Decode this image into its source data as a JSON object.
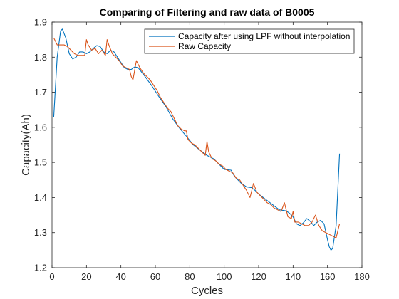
{
  "chart_data": {
    "type": "line",
    "title": "Comparing of Filtering and raw data of B0005",
    "xlabel": "Cycles",
    "ylabel": "Capacity(Ah)",
    "xlim": [
      0,
      180
    ],
    "ylim": [
      1.2,
      1.9
    ],
    "xticks": [
      0,
      20,
      40,
      60,
      80,
      100,
      120,
      140,
      160,
      180
    ],
    "yticks": [
      1.2,
      1.3,
      1.4,
      1.5,
      1.6,
      1.7,
      1.8,
      1.9
    ],
    "grid": false,
    "legend_position": "top-right",
    "series": [
      {
        "name": "Capacity after using LPF without interpolation",
        "color": "#0072BD",
        "x": [
          1,
          3,
          5,
          6,
          8,
          10,
          12,
          14,
          16,
          18,
          20,
          22,
          24,
          26,
          28,
          30,
          32,
          34,
          36,
          38,
          40,
          42,
          44,
          46,
          48,
          50,
          54,
          58,
          62,
          66,
          70,
          74,
          78,
          82,
          86,
          90,
          94,
          98,
          100,
          104,
          106,
          110,
          113,
          116,
          118,
          120,
          124,
          128,
          132,
          136,
          138,
          140,
          142,
          144,
          146,
          148,
          150,
          152,
          154,
          156,
          158,
          160,
          161,
          162,
          163,
          165,
          167
        ],
        "values": [
          1.63,
          1.8,
          1.875,
          1.88,
          1.855,
          1.81,
          1.795,
          1.8,
          1.815,
          1.815,
          1.81,
          1.815,
          1.825,
          1.833,
          1.83,
          1.815,
          1.81,
          1.82,
          1.815,
          1.8,
          1.785,
          1.77,
          1.765,
          1.765,
          1.772,
          1.77,
          1.745,
          1.718,
          1.688,
          1.66,
          1.625,
          1.598,
          1.575,
          1.55,
          1.535,
          1.52,
          1.51,
          1.49,
          1.48,
          1.478,
          1.46,
          1.44,
          1.43,
          1.428,
          1.42,
          1.41,
          1.395,
          1.38,
          1.365,
          1.362,
          1.355,
          1.345,
          1.325,
          1.32,
          1.328,
          1.34,
          1.332,
          1.32,
          1.33,
          1.335,
          1.325,
          1.28,
          1.26,
          1.25,
          1.255,
          1.32,
          1.525
        ]
      },
      {
        "name": "Raw Capacity",
        "color": "#D95319",
        "x": [
          1,
          3,
          5,
          7,
          9,
          11,
          13,
          15,
          17,
          19,
          20,
          21,
          23,
          25,
          27,
          29,
          31,
          32,
          33,
          35,
          37,
          39,
          41,
          43,
          45,
          46,
          47,
          49,
          51,
          53,
          55,
          57,
          59,
          61,
          63,
          65,
          67,
          69,
          71,
          73,
          75,
          77,
          78,
          79,
          81,
          83,
          85,
          87,
          89,
          90,
          91,
          93,
          95,
          97,
          99,
          101,
          103,
          105,
          107,
          109,
          111,
          113,
          115,
          117,
          119,
          121,
          123,
          125,
          127,
          129,
          131,
          133,
          135,
          137,
          139,
          140,
          141,
          143,
          145,
          147,
          149,
          151,
          153,
          155,
          157,
          159,
          161,
          163,
          165,
          167
        ],
        "values": [
          1.855,
          1.835,
          1.835,
          1.835,
          1.83,
          1.82,
          1.81,
          1.805,
          1.805,
          1.805,
          1.85,
          1.835,
          1.82,
          1.825,
          1.81,
          1.82,
          1.805,
          1.85,
          1.835,
          1.81,
          1.8,
          1.79,
          1.775,
          1.77,
          1.765,
          1.745,
          1.735,
          1.79,
          1.77,
          1.755,
          1.745,
          1.735,
          1.72,
          1.705,
          1.685,
          1.67,
          1.655,
          1.645,
          1.625,
          1.605,
          1.595,
          1.59,
          1.59,
          1.565,
          1.555,
          1.55,
          1.54,
          1.53,
          1.52,
          1.56,
          1.53,
          1.51,
          1.505,
          1.495,
          1.49,
          1.48,
          1.475,
          1.47,
          1.455,
          1.45,
          1.435,
          1.42,
          1.4,
          1.44,
          1.415,
          1.405,
          1.395,
          1.385,
          1.38,
          1.37,
          1.365,
          1.36,
          1.385,
          1.345,
          1.34,
          1.36,
          1.33,
          1.33,
          1.325,
          1.32,
          1.32,
          1.33,
          1.35,
          1.32,
          1.305,
          1.3,
          1.295,
          1.29,
          1.285,
          1.325
        ]
      }
    ]
  }
}
